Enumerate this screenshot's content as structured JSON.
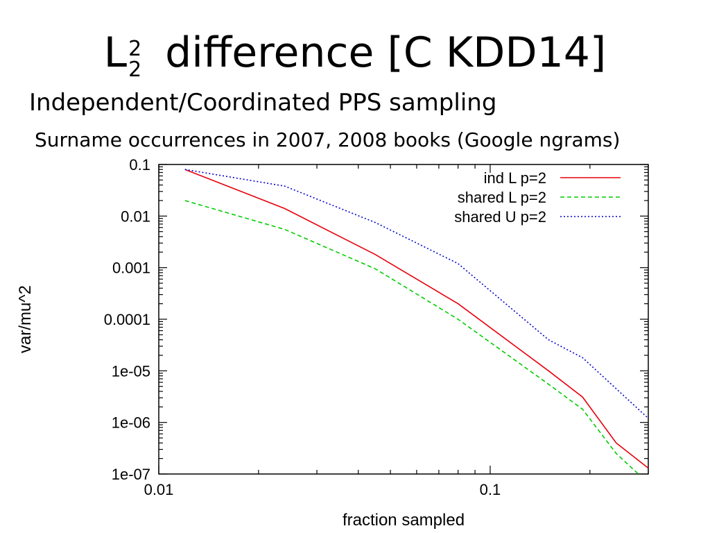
{
  "slide": {
    "title_main": "L",
    "title_sup": "2",
    "title_sub": "2",
    "title_rest": " difference [C KDD14]",
    "subtitle": "Independent/Coordinated PPS sampling",
    "caption": "Surname occurrences in 2007, 2008 books (Google ngrams)"
  },
  "chart_data": {
    "type": "line",
    "title": "",
    "xlabel": "fraction sampled",
    "ylabel": "var/mu^2",
    "x_scale": "log",
    "y_scale": "log",
    "xlim": [
      0.01,
      0.3
    ],
    "ylim": [
      1e-07,
      0.1
    ],
    "x_tick_labels": [
      {
        "value": 0.01,
        "label": "0.01"
      },
      {
        "value": 0.1,
        "label": "0.1"
      }
    ],
    "y_tick_labels": [
      {
        "value": 0.1,
        "label": "0.1"
      },
      {
        "value": 0.01,
        "label": "0.01"
      },
      {
        "value": 0.001,
        "label": "0.001"
      },
      {
        "value": 0.0001,
        "label": "0.0001"
      },
      {
        "value": 1e-05,
        "label": "1e-05"
      },
      {
        "value": 1e-06,
        "label": "1e-06"
      },
      {
        "value": 1e-07,
        "label": "1e-07"
      }
    ],
    "grid": false,
    "legend_position": "top-right",
    "series": [
      {
        "name": "ind L p=2",
        "color": "#e8000b",
        "dash": "solid",
        "x": [
          0.012,
          0.024,
          0.045,
          0.08,
          0.15,
          0.19,
          0.24,
          0.3
        ],
        "y": [
          0.08,
          0.014,
          0.0018,
          0.0002,
          1e-05,
          3.1e-06,
          4e-07,
          1.3e-07
        ]
      },
      {
        "name": "shared L p=2",
        "color": "#00cc00",
        "dash": "dashed",
        "x": [
          0.012,
          0.024,
          0.045,
          0.08,
          0.15,
          0.19,
          0.24,
          0.28
        ],
        "y": [
          0.02,
          0.0055,
          0.00095,
          0.0001,
          5.5e-06,
          1.8e-06,
          2.5e-07,
          1e-07
        ]
      },
      {
        "name": "shared U p=2",
        "color": "#0000cc",
        "dash": "dotted",
        "x": [
          0.012,
          0.024,
          0.045,
          0.08,
          0.15,
          0.19,
          0.24,
          0.3
        ],
        "y": [
          0.08,
          0.038,
          0.0075,
          0.0012,
          4e-05,
          1.8e-05,
          4.5e-06,
          1.2e-06
        ]
      }
    ]
  }
}
